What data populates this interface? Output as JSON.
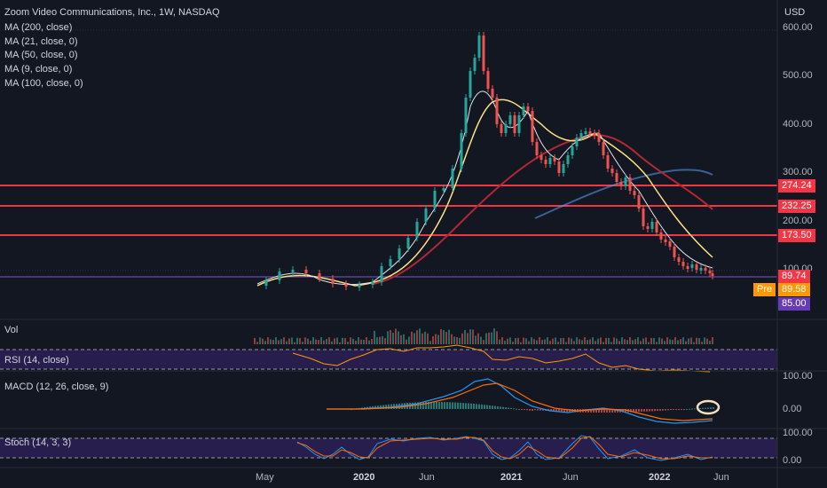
{
  "header": {
    "title": "Zoom Video Communications, Inc., 1W, NASDAQ",
    "currency": "USD",
    "ma_labels": [
      "MA (200, close)",
      "MA (21, close, 0)",
      "MA (50, close, 0)",
      "MA (9, close, 0)",
      "MA (100, close, 0)"
    ]
  },
  "price_axis": {
    "ticks": [
      "600.00",
      "500.00",
      "400.00",
      "300.00",
      "200.00"
    ],
    "partially_hidden_tick": "100.00"
  },
  "price_tags": {
    "level1": "274.24",
    "level2": "232.25",
    "level3": "173.50",
    "ma_value": "89.74",
    "pre_label": "Pre",
    "pre_value": "89.58",
    "level4": "85.00"
  },
  "panes": {
    "vol_label": "Vol",
    "rsi_label": "RSI (14, close)",
    "macd_label": "MACD (12, 26, close, 9)",
    "macd_ticks": [
      "100.00",
      "0.00"
    ],
    "stoch_label": "Stoch (14, 3, 3)",
    "stoch_ticks": [
      "100.00",
      "0.00"
    ]
  },
  "time_axis": {
    "labels": [
      "May",
      "2020",
      "Jun",
      "2021",
      "Jun",
      "2022",
      "Jun"
    ]
  },
  "colors": {
    "background": "#131722",
    "level_line": "#f23645",
    "ma_orange_tag": "#ff9800",
    "ma_red_tag": "#f23645",
    "purple_tag": "#673ab7",
    "up_candle": "#26a69a",
    "down_candle": "#ef5350",
    "pane_purple": "#2a1f52"
  }
}
